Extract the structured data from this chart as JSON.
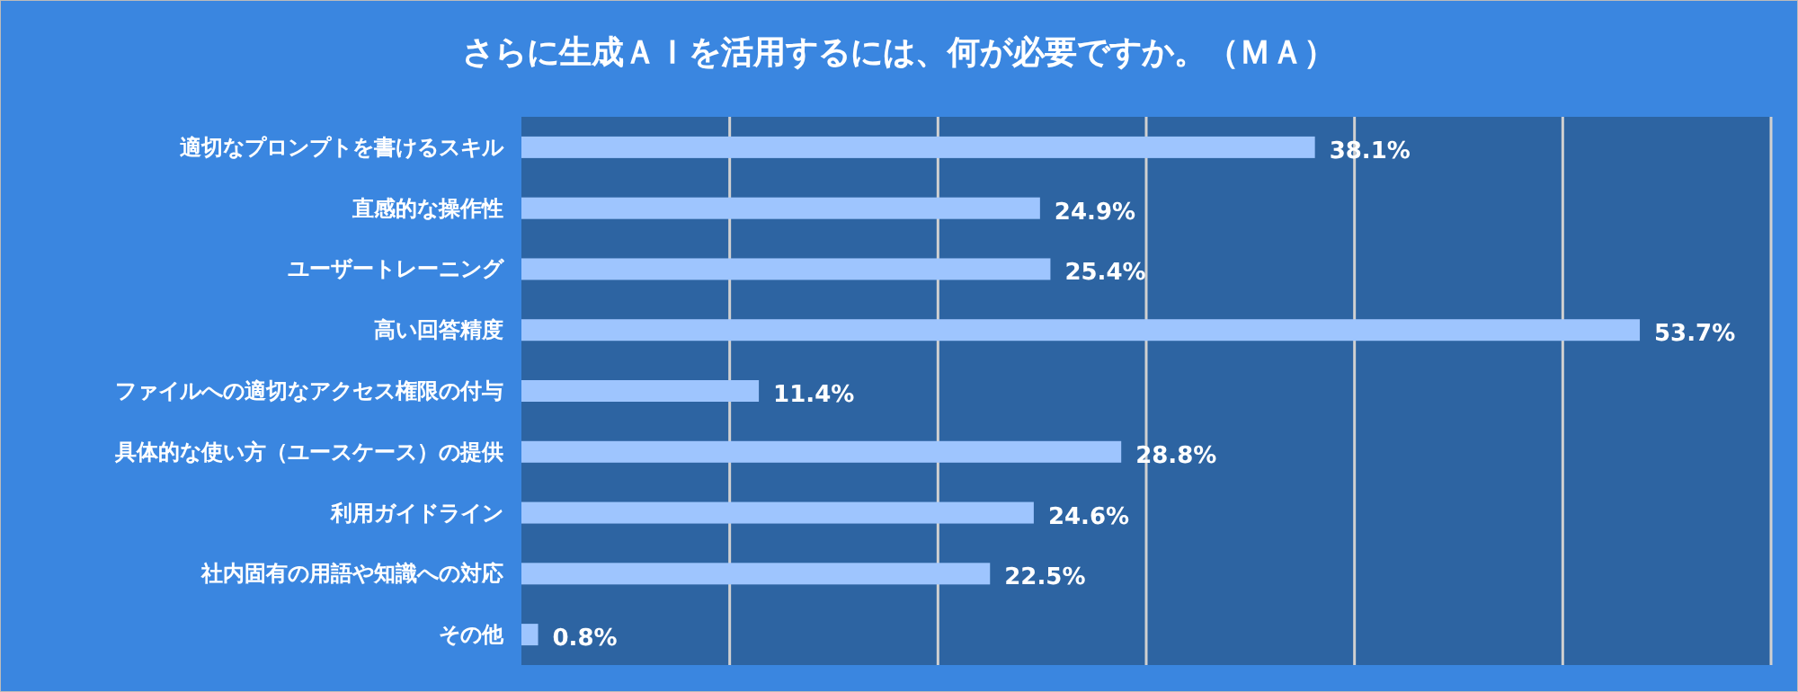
{
  "chart_data": {
    "type": "bar",
    "orientation": "horizontal",
    "title": "さらに生成ＡＩを活用するには、何が必要ですか。（ＭＡ）",
    "categories": [
      "適切なプロンプトを書けるスキル",
      "直感的な操作性",
      "ユーザートレーニング",
      "高い回答精度",
      "ファイルへの適切なアクセス権限の付与",
      "具体的な使い方（ユースケース）の提供",
      "利用ガイドライン",
      "社内固有の用語や知識への対応",
      "その他"
    ],
    "values": [
      38.1,
      24.9,
      25.4,
      53.7,
      11.4,
      28.8,
      24.6,
      22.5,
      0.8
    ],
    "value_labels": [
      "38.1%",
      "24.9%",
      "25.4%",
      "53.7%",
      "11.4%",
      "28.8%",
      "24.6%",
      "22.5%",
      "0.8%"
    ],
    "color": "#9ec5fe",
    "xlim": [
      0,
      60
    ],
    "xticks": [
      {
        "value": 0,
        "label": null
      },
      {
        "value": 10,
        "label": null
      },
      {
        "value": 20,
        "label": null
      },
      {
        "value": 30,
        "label": null
      },
      {
        "value": 40,
        "label": null
      },
      {
        "value": 50,
        "label": null
      },
      {
        "value": 60,
        "label": null
      }
    ],
    "grid": "x",
    "tick_labels": "y"
  }
}
